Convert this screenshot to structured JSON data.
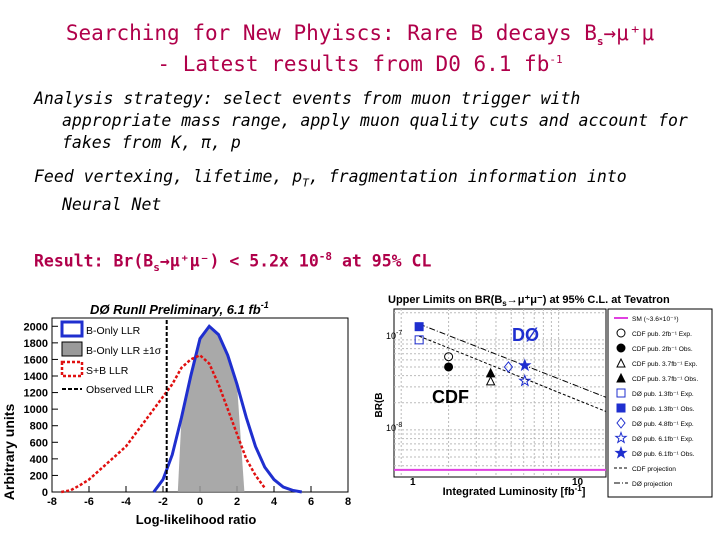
{
  "slide": {
    "title_line1": "Searching for New Phyiscs: Rare B decays B",
    "title_sub": "s",
    "title_decay": "→μ⁺μ",
    "title_line2_prefix": "- Latest results from D0 6.1 fb",
    "title_sup": "-1",
    "para1_a": "Analysis strategy: select events from muon trigger with",
    "para1_b": "appropriate mass range, apply muon quality cuts and account for",
    "para1_c": "fakes from K, π, p",
    "para2_a": "Feed vertexing, lifetime, p",
    "para2_sub": "T",
    "para2_b": ", fragmentation information into",
    "para2_c": "Neural Net",
    "result_prefix": "Result: Br(B",
    "result_sub": "s",
    "result_mid": "→μ⁺μ⁻) < 5.2x 10",
    "result_sup": "-8",
    "result_suffix": " at 95% CL"
  },
  "left_plot": {
    "title": "DØ RunII Preliminary, 6.1 fb",
    "title_sup": "-1",
    "ylabel": "Arbitrary units",
    "xlabel": "Log-likelihood ratio",
    "legend": [
      "B-Only LLR",
      "B-Only LLR ±1σ",
      "S+B LLR",
      "Observed LLR"
    ],
    "colors": {
      "b_only": "#1f2fcf",
      "band": "#9a9a9a",
      "sb": "#e01010",
      "obs": "#000000"
    }
  },
  "right_plot": {
    "title": "Upper Limits on BR(B",
    "title_sub": "s",
    "title_rest": "→μ⁺μ⁻) at 95% C.L. at Tevatron",
    "ylabel": "BR(B",
    "xlabel": "Integrated Luminosity [fb",
    "xlabel_sup": "-1",
    "xlabel_end": "]",
    "label_d0": "DØ",
    "label_cdf": "CDF",
    "legend": [
      "SM (~3.6×10⁻⁹)",
      "CDF pub. 2fb⁻¹ Exp.",
      "CDF pub. 2fb⁻¹ Obs.",
      "CDF pub. 3.7fb⁻¹ Exp.",
      "CDF pub. 3.7fb⁻¹ Obs.",
      "DØ pub. 1.3fb⁻¹ Exp.",
      "DØ pub. 1.3fb⁻¹ Obs.",
      "DØ pub. 4.8fb⁻¹ Exp.",
      "DØ pub. 6.1fb⁻¹ Exp.",
      "DØ pub. 6.1fb⁻¹ Obs.",
      "CDF projection",
      "DØ projection"
    ]
  },
  "chart_data": [
    {
      "type": "area",
      "title": "DØ RunII Preliminary, 6.1 fb-1",
      "xlabel": "Log-likelihood ratio",
      "ylabel": "Arbitrary units",
      "xlim": [
        -8,
        8
      ],
      "ylim": [
        0,
        2100
      ],
      "x_ticks": [
        -8,
        -6,
        -4,
        -2,
        0,
        2,
        4,
        6,
        8
      ],
      "y_ticks": [
        0,
        200,
        400,
        600,
        800,
        1000,
        1200,
        1400,
        1600,
        1800,
        2000
      ],
      "series": [
        {
          "name": "B-Only LLR",
          "x": [
            -2.5,
            -2,
            -1.5,
            -1,
            -0.5,
            0,
            0.5,
            1,
            1.5,
            2,
            2.5,
            3,
            3.5,
            4,
            4.5,
            5,
            5.5
          ],
          "values": [
            0,
            150,
            450,
            900,
            1400,
            1850,
            2000,
            1900,
            1650,
            1300,
            900,
            550,
            300,
            150,
            60,
            20,
            0
          ]
        },
        {
          "name": "S+B LLR",
          "x": [
            -7.5,
            -7,
            -6.5,
            -6,
            -5.5,
            -5,
            -4.5,
            -4,
            -3.5,
            -3,
            -2.5,
            -2,
            -1.5,
            -1,
            -0.5,
            0,
            0.5,
            1,
            1.5,
            2,
            2.5,
            3,
            3.5
          ],
          "values": [
            0,
            20,
            80,
            150,
            250,
            350,
            450,
            550,
            700,
            850,
            1000,
            1150,
            1300,
            1500,
            1600,
            1650,
            1550,
            1300,
            1000,
            700,
            400,
            200,
            50
          ]
        },
        {
          "name": "Observed LLR",
          "x": [
            -1.8,
            -1.8
          ],
          "values": [
            0,
            2100
          ]
        }
      ]
    },
    {
      "type": "scatter",
      "title": "Upper Limits on BR(Bs→μ+μ-) at 95% C.L. at Tevatron",
      "xlabel": "Integrated Luminosity [fb-1]",
      "ylabel": "BR(Bs→μ+μ-)",
      "x_scale": "log",
      "y_scale": "log",
      "series": [
        {
          "name": "CDF pub. 2fb⁻¹ Exp.",
          "x": [
            2
          ],
          "values": [
            6.5e-08
          ]
        },
        {
          "name": "CDF pub. 2fb⁻¹ Obs.",
          "x": [
            2
          ],
          "values": [
            5e-08
          ]
        },
        {
          "name": "CDF pub. 3.7fb⁻¹ Exp.",
          "x": [
            3.7
          ],
          "values": [
            3.5e-08
          ]
        },
        {
          "name": "CDF pub. 3.7fb⁻¹ Obs.",
          "x": [
            3.7
          ],
          "values": [
            4.3e-08
          ]
        },
        {
          "name": "DØ pub. 1.3fb⁻¹ Exp.",
          "x": [
            1.3
          ],
          "values": [
            1e-07
          ]
        },
        {
          "name": "DØ pub. 1.3fb⁻¹ Obs.",
          "x": [
            1.3
          ],
          "values": [
            1.4e-07
          ]
        },
        {
          "name": "DØ pub. 4.8fb⁻¹ Exp.",
          "x": [
            4.8
          ],
          "values": [
            5e-08
          ]
        },
        {
          "name": "DØ pub. 6.1fb⁻¹ Exp.",
          "x": [
            6.1
          ],
          "values": [
            3.5e-08
          ]
        },
        {
          "name": "DØ pub. 6.1fb⁻¹ Obs.",
          "x": [
            6.1
          ],
          "values": [
            5.2e-08
          ]
        }
      ]
    }
  ]
}
